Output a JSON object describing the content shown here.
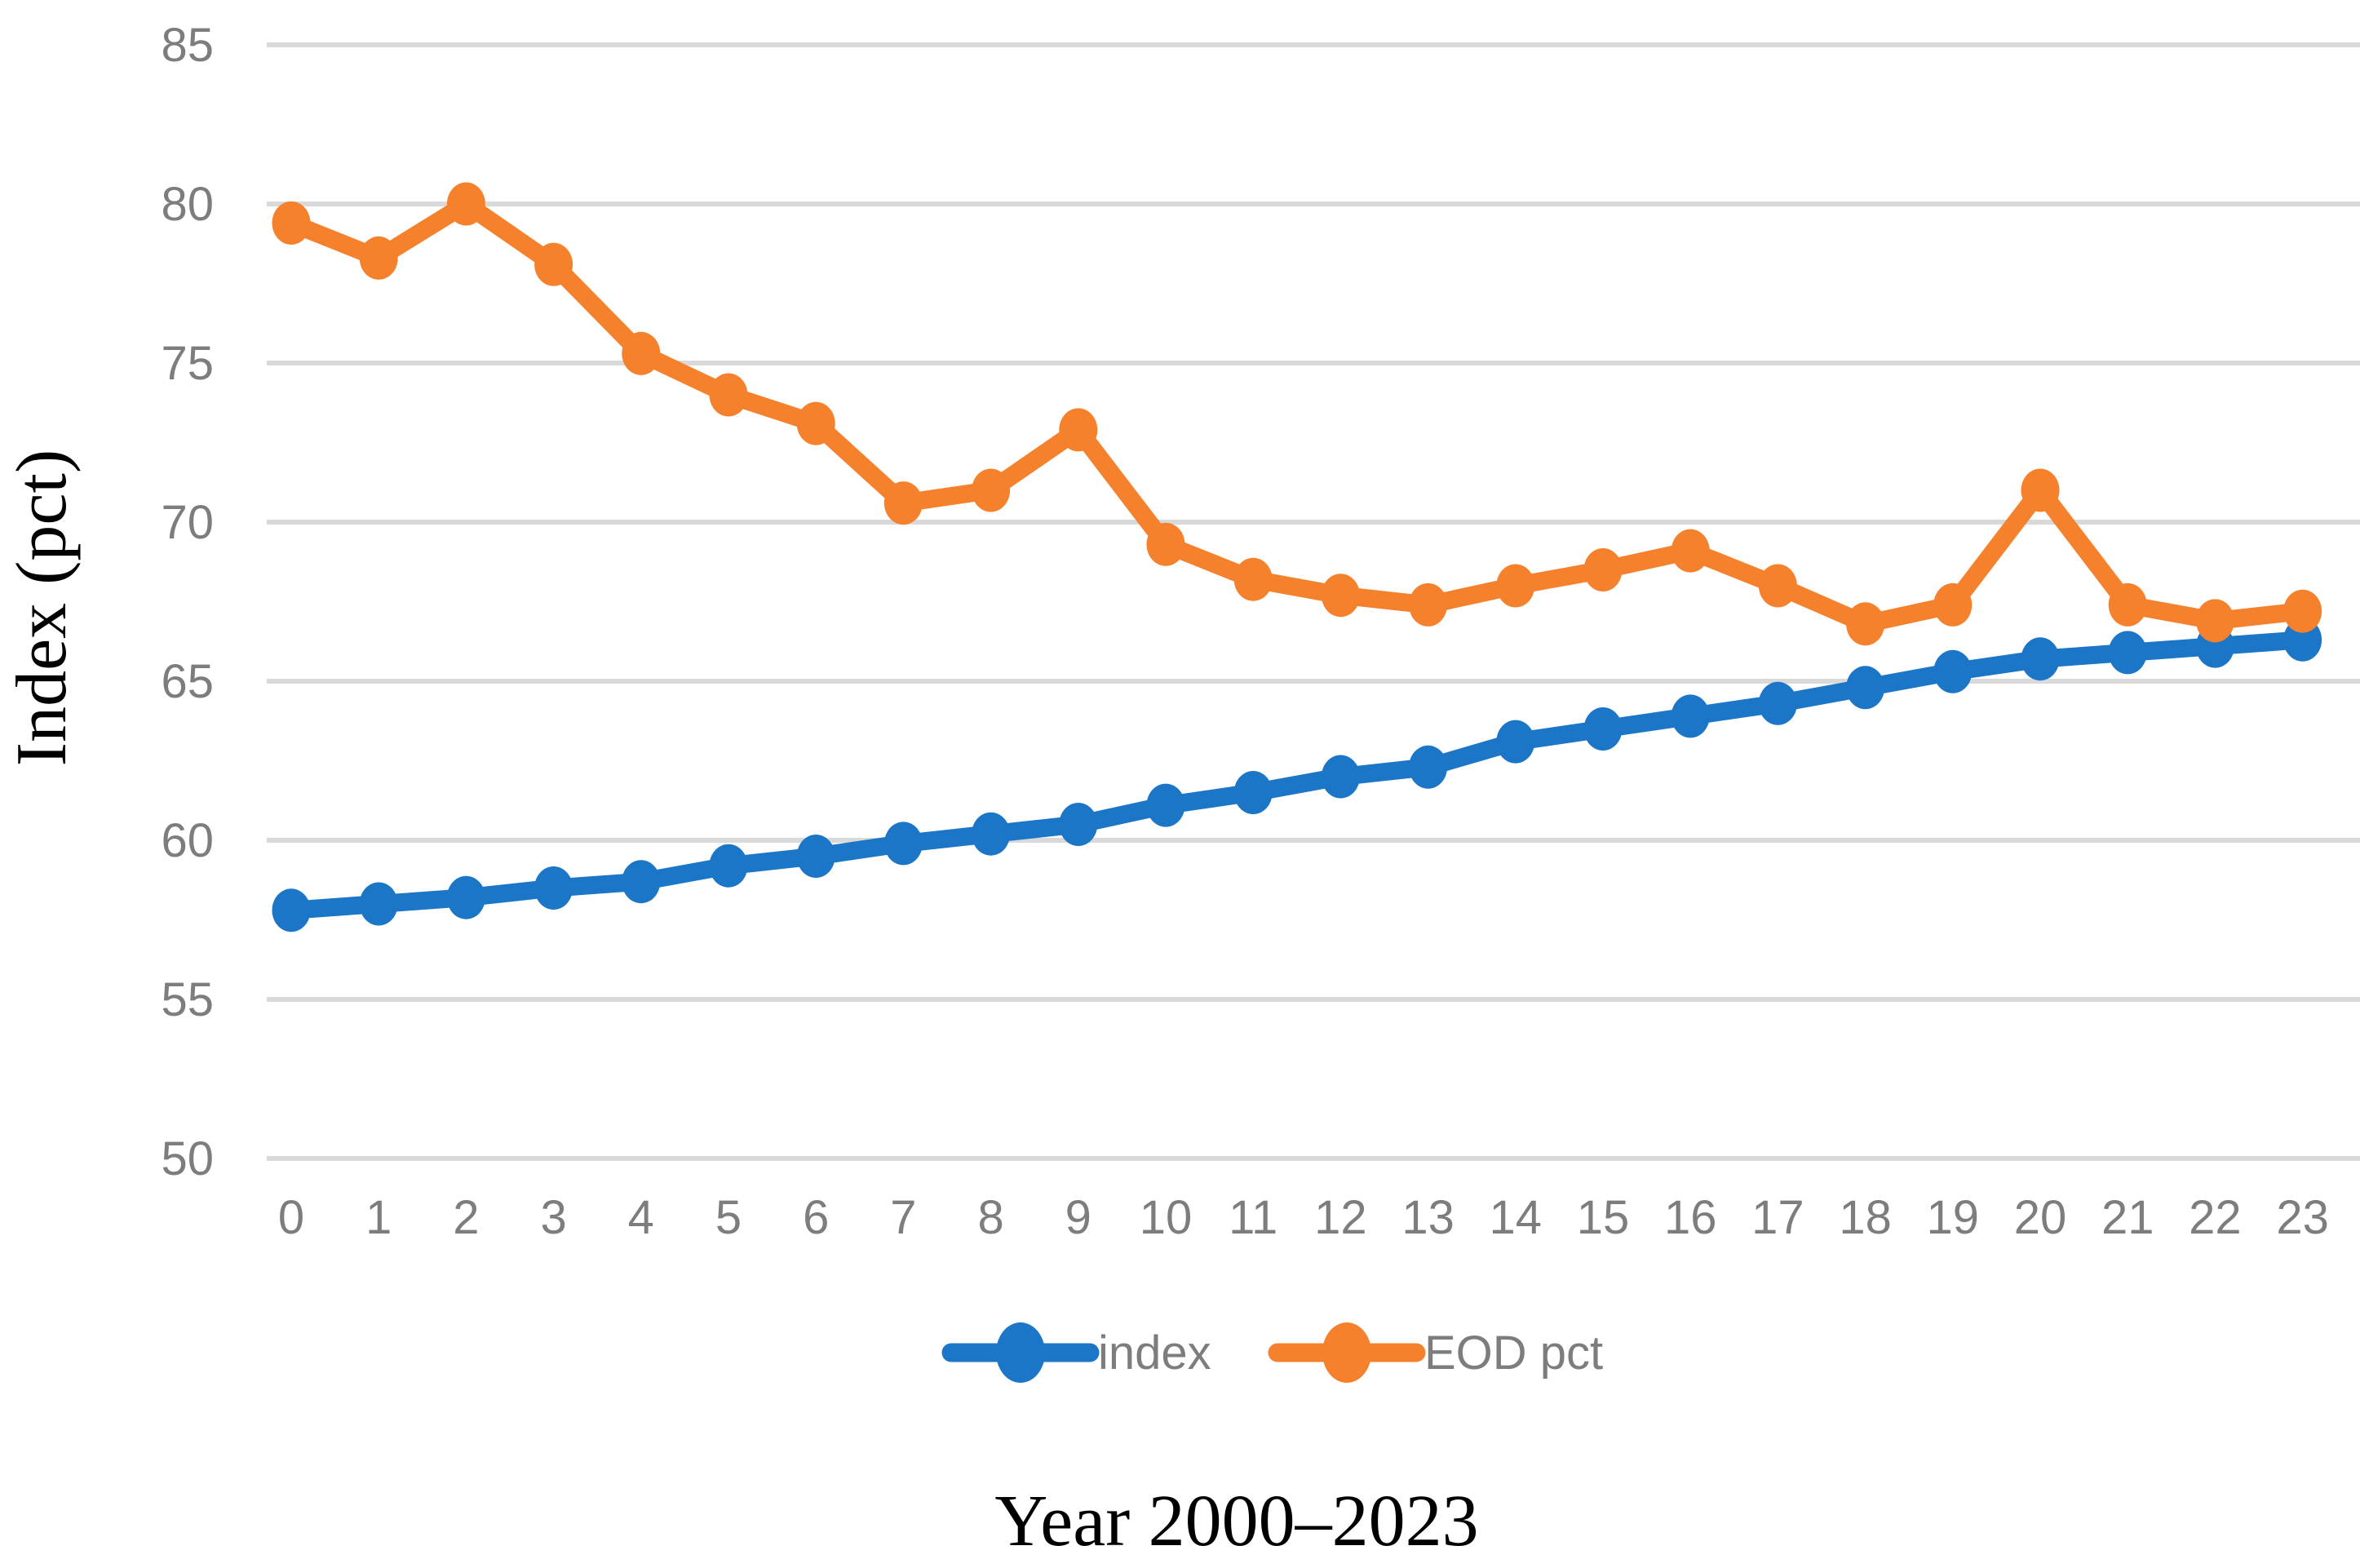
{
  "chart_data": {
    "type": "line",
    "title": "",
    "xlabel": "Year 2000–2023",
    "ylabel": "Index (pct)",
    "x": [
      0,
      1,
      2,
      3,
      4,
      5,
      6,
      7,
      8,
      9,
      10,
      11,
      12,
      13,
      14,
      15,
      16,
      17,
      18,
      19,
      20,
      21,
      22,
      23
    ],
    "x_tick_labels": [
      "0",
      "1",
      "2",
      "3",
      "4",
      "5",
      "6",
      "7",
      "8",
      "9",
      "10",
      "11",
      "12",
      "13",
      "14",
      "15",
      "16",
      "17",
      "18",
      "19",
      "20",
      "21",
      "22",
      "23"
    ],
    "ylim": [
      50,
      85
    ],
    "ytick_step": 5,
    "ytick_labels": [
      "50",
      "55",
      "60",
      "65",
      "70",
      "75",
      "80",
      "85"
    ],
    "grid": true,
    "legend_position": "bottom-center",
    "series": [
      {
        "name": "index",
        "color": "#1B76C8",
        "values": [
          57.8,
          58.0,
          58.2,
          58.5,
          58.7,
          59.2,
          59.5,
          59.9,
          60.2,
          60.5,
          61.1,
          61.5,
          62.0,
          62.3,
          63.1,
          63.5,
          63.9,
          64.3,
          64.8,
          65.3,
          65.7,
          65.9,
          66.1,
          66.3
        ]
      },
      {
        "name": "EOD pct",
        "color": "#F6812C",
        "values": [
          79.4,
          78.3,
          80.0,
          78.1,
          75.3,
          74.0,
          73.1,
          70.6,
          71.0,
          72.9,
          69.3,
          68.2,
          67.7,
          67.4,
          68.0,
          68.5,
          69.1,
          68.0,
          66.8,
          67.4,
          71.0,
          67.4,
          66.9,
          67.2
        ]
      }
    ],
    "theme": {
      "background": "#FFFFFF",
      "gridline_color": "#D9D9D9",
      "tick_label_color": "#7D7D7D",
      "legend_text_color": "#7D7D7D",
      "axis_title_color": "#000000"
    }
  }
}
